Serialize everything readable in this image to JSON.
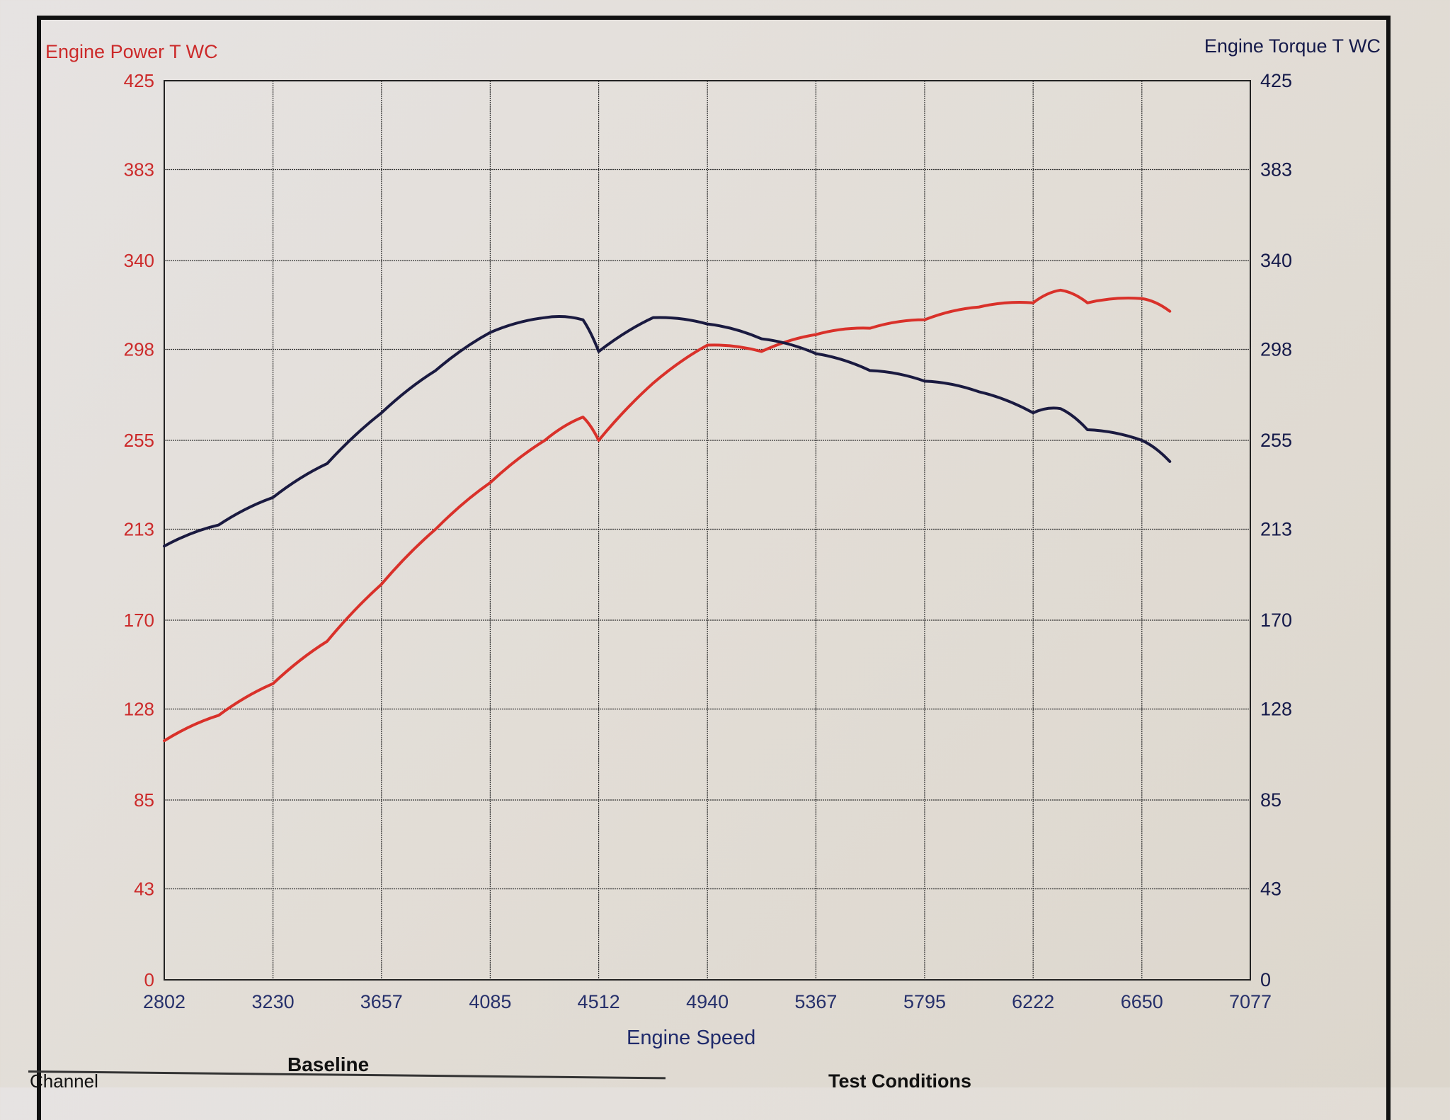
{
  "report": {
    "left_axis_title": "Engine Power T WC",
    "right_axis_title": "Engine Torque T WC",
    "x_axis_title": "Engine Speed",
    "baseline_label": "Baseline",
    "channel_label": "Channel",
    "test_conditions_label": "Test Conditions"
  },
  "colors": {
    "power": "#d9312a",
    "torque": "#1a1a40",
    "left_axis_text": "#cc2a2a",
    "right_axis_text": "#151a4a",
    "grid": "#333333"
  },
  "chart_data": {
    "type": "line",
    "title": "",
    "xlabel": "Engine Speed",
    "ylabel": "Engine Power T WC",
    "y2label": "Engine Torque T WC",
    "xlim": [
      2802,
      7077
    ],
    "ylim": [
      0,
      425
    ],
    "y2lim": [
      0,
      425
    ],
    "grid": true,
    "legend": "axis titles (left red = power, right navy = torque)",
    "x_ticks": [
      2802,
      3230,
      3657,
      4085,
      4512,
      4940,
      5367,
      5795,
      6222,
      6650,
      7077
    ],
    "y_ticks": [
      0,
      43,
      85,
      128,
      170,
      213,
      255,
      298,
      340,
      383,
      425
    ],
    "y2_ticks": [
      0,
      43,
      85,
      128,
      170,
      213,
      255,
      298,
      340,
      383,
      425
    ],
    "x": [
      2802,
      3016,
      3230,
      3443,
      3657,
      3870,
      4085,
      4300,
      4450,
      4512,
      4726,
      4940,
      5153,
      5367,
      5580,
      5795,
      6008,
      6222,
      6330,
      6436,
      6650,
      6760
    ],
    "series": [
      {
        "name": "Engine Power T WC",
        "axis": "left",
        "color": "#d9312a",
        "values": [
          113,
          125,
          140,
          160,
          187,
          213,
          235,
          255,
          266,
          255,
          282,
          300,
          297,
          305,
          308,
          312,
          318,
          320,
          326,
          320,
          322,
          316
        ]
      },
      {
        "name": "Engine Torque T WC",
        "axis": "right",
        "color": "#1a1a40",
        "values": [
          205,
          215,
          228,
          244,
          268,
          288,
          306,
          313,
          312,
          297,
          313,
          310,
          303,
          296,
          288,
          283,
          278,
          268,
          270,
          260,
          255,
          245
        ]
      }
    ]
  }
}
